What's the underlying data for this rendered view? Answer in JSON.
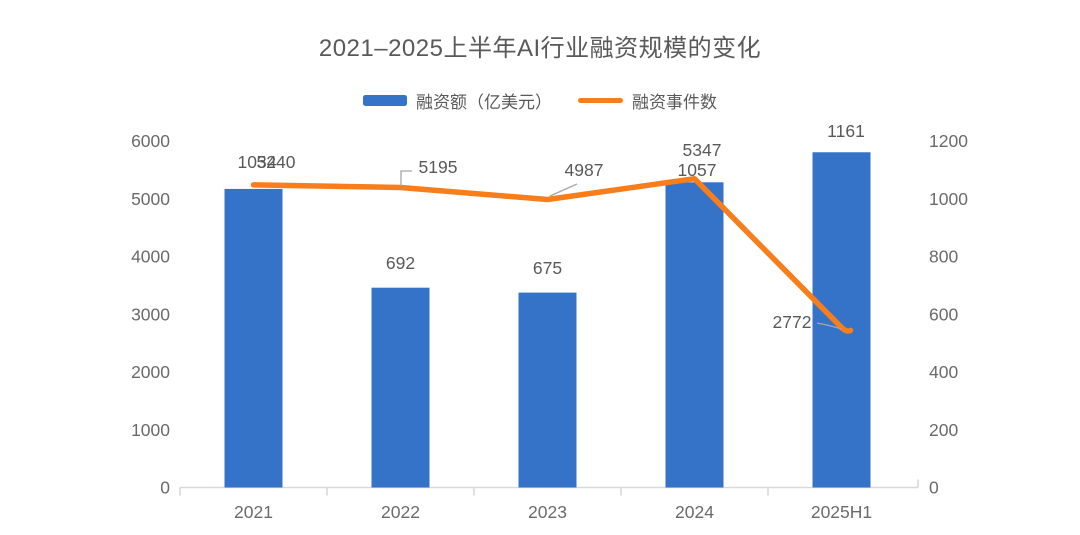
{
  "chart_data": {
    "type": "bar",
    "combo": "bar+line dual axis",
    "title": "2021–2025上半年AI行业融资规模的变化",
    "categories": [
      "2021",
      "2022",
      "2023",
      "2024",
      "2025H1"
    ],
    "series": [
      {
        "name": "融资额（亿美元）",
        "type": "bar",
        "axis": "right",
        "color": "#3573C9",
        "values": [
          1034,
          692,
          675,
          1057,
          1161
        ]
      },
      {
        "name": "融资事件数",
        "type": "line",
        "axis": "left",
        "color": "#F87D1B",
        "values": [
          5240,
          5195,
          4987,
          5347,
          2772
        ]
      }
    ],
    "axes": {
      "left": {
        "min": 0,
        "max": 6000,
        "ticks": [
          6000,
          5000,
          4000,
          3000,
          2000,
          1000,
          0
        ]
      },
      "right": {
        "min": 0,
        "max": 1200,
        "ticks": [
          1200,
          1000,
          800,
          600,
          400,
          200,
          0
        ]
      }
    },
    "legend_position": "top",
    "grid": false,
    "data_labels": true
  },
  "colors": {
    "text": "#595959",
    "axis_text": "#6a6a6a",
    "axis_line": "#d9d9d9",
    "leader": "#a6a6a6",
    "background": "#ffffff"
  }
}
